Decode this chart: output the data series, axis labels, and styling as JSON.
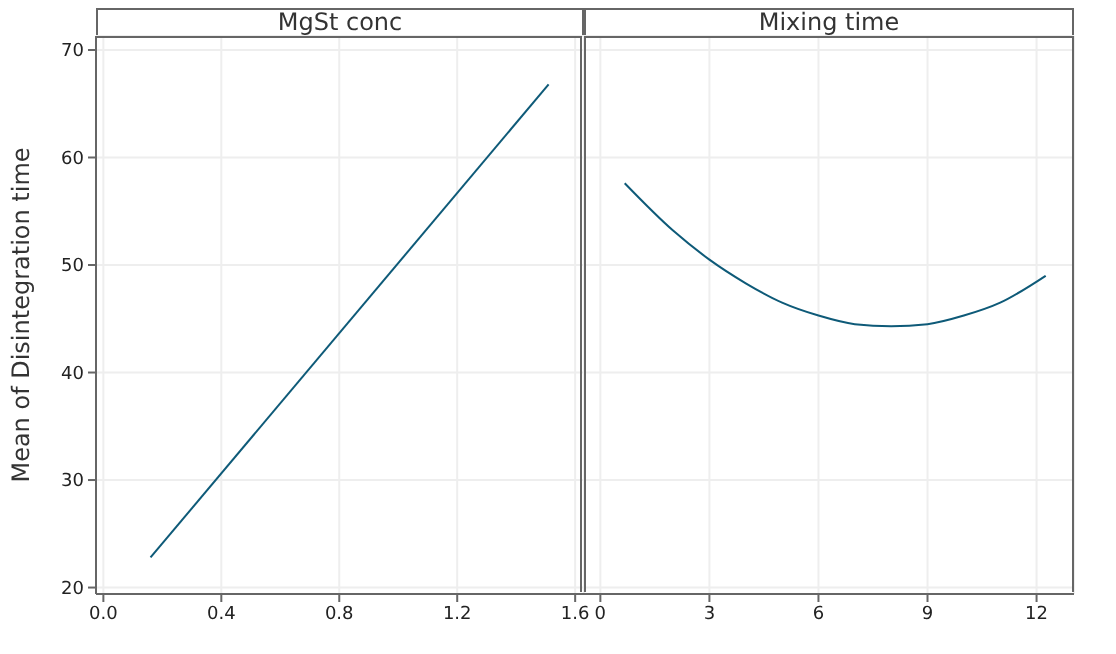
{
  "chart_data": [
    {
      "type": "line",
      "title": "MgSt conc",
      "ylabel": "Mean of Disintegration time",
      "xlim": [
        -0.025,
        1.63
      ],
      "xticks": [
        {
          "value": 0,
          "label": "0.0"
        },
        0.4,
        0.8,
        1.2,
        1.6
      ],
      "ylim": [
        19.4,
        71.3
      ],
      "yticks": [
        20,
        30,
        40,
        50,
        60,
        70
      ],
      "grid": true,
      "series": [
        {
          "color": "#0e5a78",
          "x": [
            0.16,
            1.51
          ],
          "values": [
            22.8,
            66.8
          ]
        }
      ]
    },
    {
      "type": "line",
      "title": "Mixing time",
      "xlim": [
        -0.45,
        13.03
      ],
      "xticks": [
        0,
        3,
        6,
        9,
        12
      ],
      "ylim": [
        19.4,
        71.3
      ],
      "yticks": [
        20,
        30,
        40,
        50,
        60,
        70
      ],
      "grid": true,
      "tick_labels": "x",
      "series": [
        {
          "color": "#0e5a78",
          "x": [
            0.67,
            2,
            3,
            4,
            5,
            6,
            7,
            8,
            9,
            10,
            11,
            12.25
          ],
          "values": [
            57.6,
            53.2,
            50.5,
            48.3,
            46.5,
            45.3,
            44.5,
            44.3,
            44.5,
            45.3,
            46.5,
            49.0
          ]
        }
      ]
    }
  ]
}
